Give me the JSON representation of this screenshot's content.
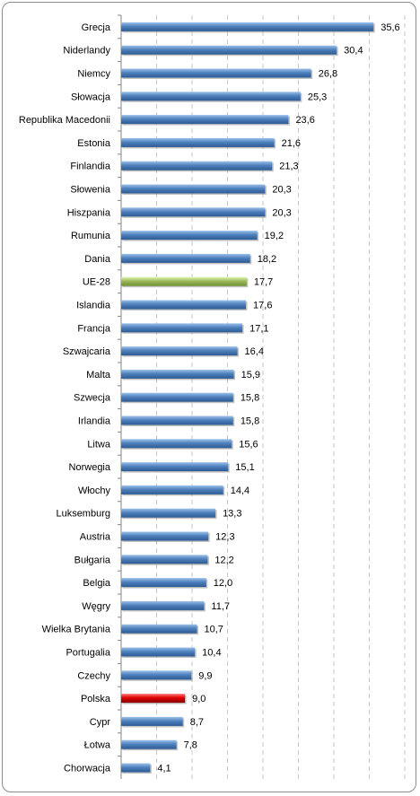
{
  "chart_data": {
    "type": "bar",
    "orientation": "horizontal",
    "title": "",
    "xlabel": "",
    "ylabel": "",
    "xlim": [
      0,
      40
    ],
    "grid": "vertical dashed",
    "legend": "none",
    "colors": {
      "default": "#4f81bd",
      "highlight_eu": "#9bbb59",
      "highlight_pl": "#c00000"
    },
    "categories": [
      "Grecja",
      "Niderlandy",
      "Niemcy",
      "Słowacja",
      "Republika Macedonii",
      "Estonia",
      "Finlandia",
      "Słowenia",
      "Hiszpania",
      "Rumunia",
      "Dania",
      "UE-28",
      "Islandia",
      "Francja",
      "Szwajcaria",
      "Malta",
      "Szwecja",
      "Irlandia",
      "Litwa",
      "Norwegia",
      "Włochy",
      "Luksemburg",
      "Austria",
      "Bułgaria",
      "Belgia",
      "Węgry",
      "Wielka Brytania",
      "Portugalia",
      "Czechy",
      "Polska",
      "Cypr",
      "Łotwa",
      "Chorwacja"
    ],
    "values": [
      35.6,
      30.4,
      26.8,
      25.3,
      23.6,
      21.6,
      21.3,
      20.3,
      20.3,
      19.2,
      18.2,
      17.7,
      17.6,
      17.1,
      16.4,
      15.9,
      15.8,
      15.8,
      15.6,
      15.1,
      14.4,
      13.3,
      12.3,
      12.2,
      12.0,
      11.7,
      10.7,
      10.4,
      9.9,
      9.0,
      8.7,
      7.8,
      4.1
    ],
    "value_labels": [
      "35,6",
      "30,4",
      "26,8",
      "25,3",
      "23,6",
      "21,6",
      "21,3",
      "20,3",
      "20,3",
      "19,2",
      "18,2",
      "17,7",
      "17,6",
      "17,1",
      "16,4",
      "15,9",
      "15,8",
      "15,8",
      "15,6",
      "15,1",
      "14,4",
      "13,3",
      "12,3",
      "12,2",
      "12,0",
      "11,7",
      "10,7",
      "10,4",
      "9,9",
      "9,0",
      "8,7",
      "7,8",
      "4,1"
    ],
    "highlight": {
      "UE-28": "highlight_eu",
      "Polska": "highlight_pl"
    }
  }
}
